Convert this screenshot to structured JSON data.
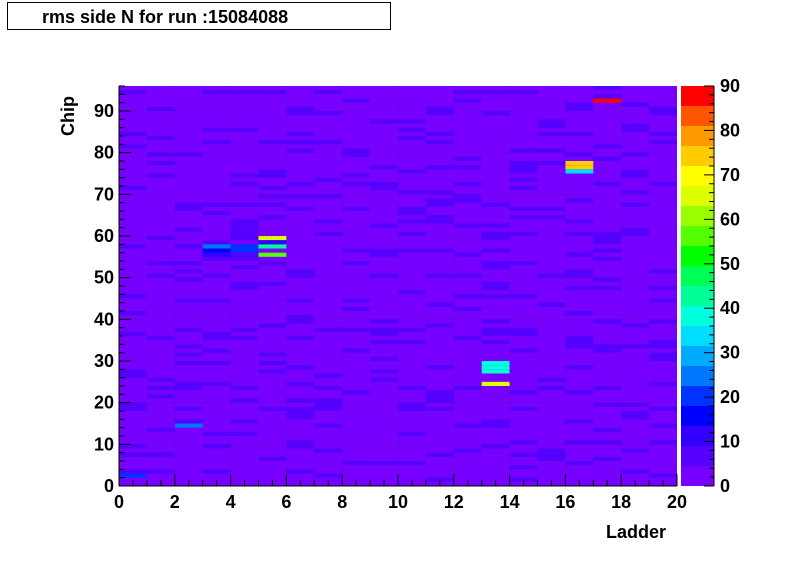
{
  "chart_data": {
    "type": "heatmap",
    "title": "rms side N for run :15084088",
    "xlabel": "Ladder",
    "ylabel": "Chip",
    "xlim": [
      0,
      20
    ],
    "ylim": [
      0,
      96
    ],
    "x_ticks": [
      "0",
      "2",
      "4",
      "6",
      "8",
      "10",
      "12",
      "14",
      "16",
      "18",
      "20"
    ],
    "y_ticks": [
      "0",
      "10",
      "20",
      "30",
      "40",
      "50",
      "60",
      "70",
      "80",
      "90"
    ],
    "colorbar": {
      "range": [
        0,
        90
      ],
      "ticks": [
        "0",
        "10",
        "20",
        "30",
        "40",
        "50",
        "60",
        "70",
        "80",
        "90"
      ],
      "palette": [
        "#7700ff",
        "#5500ff",
        "#3300ff",
        "#0000ff",
        "#0033ff",
        "#0077ff",
        "#00aaff",
        "#00ddff",
        "#00ffdd",
        "#00ff99",
        "#00ff55",
        "#00ff00",
        "#55ff00",
        "#99ff00",
        "#ddff00",
        "#ffff00",
        "#ffcc00",
        "#ff9900",
        "#ff5500",
        "#ff0000"
      ]
    },
    "background_value": 2,
    "bins": {
      "x_bin_width": 1,
      "y_bin_width": 1
    },
    "cells": [
      {
        "ladder": 0,
        "chip": 2,
        "value": 22
      },
      {
        "ladder": 2,
        "chip": 14,
        "value": 26
      },
      {
        "ladder": 3,
        "chip": 57,
        "value": 26
      },
      {
        "ladder": 3,
        "chip": 56,
        "value": 14
      },
      {
        "ladder": 3,
        "chip": 55,
        "value": 12
      },
      {
        "ladder": 4,
        "chip": 57,
        "value": 18
      },
      {
        "ladder": 4,
        "chip": 56,
        "value": 18
      },
      {
        "ladder": 4,
        "chip": 59,
        "value": 7
      },
      {
        "ladder": 4,
        "chip": 60,
        "value": 6
      },
      {
        "ladder": 4,
        "chip": 61,
        "value": 6
      },
      {
        "ladder": 4,
        "chip": 62,
        "value": 7
      },
      {
        "ladder": 4,
        "chip": 63,
        "value": 6
      },
      {
        "ladder": 5,
        "chip": 59,
        "value": 65
      },
      {
        "ladder": 5,
        "chip": 57,
        "value": 42
      },
      {
        "ladder": 5,
        "chip": 55,
        "value": 58
      },
      {
        "ladder": 5,
        "chip": 58,
        "value": 10
      },
      {
        "ladder": 13,
        "chip": 29,
        "value": 36
      },
      {
        "ladder": 13,
        "chip": 28,
        "value": 36
      },
      {
        "ladder": 13,
        "chip": 27,
        "value": 36
      },
      {
        "ladder": 13,
        "chip": 24,
        "value": 64
      },
      {
        "ladder": 16,
        "chip": 77,
        "value": 72
      },
      {
        "ladder": 16,
        "chip": 76,
        "value": 75
      },
      {
        "ladder": 16,
        "chip": 75,
        "value": 32
      },
      {
        "ladder": 17,
        "chip": 92,
        "value": 87
      },
      {
        "ladder": 16,
        "chip": 35,
        "value": 6
      },
      {
        "ladder": 16,
        "chip": 34,
        "value": 6
      },
      {
        "ladder": 18,
        "chip": 33,
        "value": 7
      },
      {
        "ladder": 14,
        "chip": 45,
        "value": 6
      },
      {
        "ladder": 3,
        "chip": 58,
        "value": 8
      },
      {
        "ladder": 4,
        "chip": 55,
        "value": 8
      },
      {
        "ladder": 19,
        "chip": 10,
        "value": 5
      },
      {
        "ladder": 11,
        "chip": 5,
        "value": 4
      },
      {
        "ladder": 7,
        "chip": 2,
        "value": 5
      },
      {
        "ladder": 1,
        "chip": 90,
        "value": 5
      },
      {
        "ladder": 7,
        "chip": 93,
        "value": 4
      },
      {
        "ladder": 14,
        "chip": 75,
        "value": 6
      },
      {
        "ladder": 14,
        "chip": 76,
        "value": 6
      },
      {
        "ladder": 14,
        "chip": 77,
        "value": 6
      },
      {
        "ladder": 14,
        "chip": 80,
        "value": 5
      },
      {
        "ladder": 12,
        "chip": 62,
        "value": 5
      }
    ]
  }
}
